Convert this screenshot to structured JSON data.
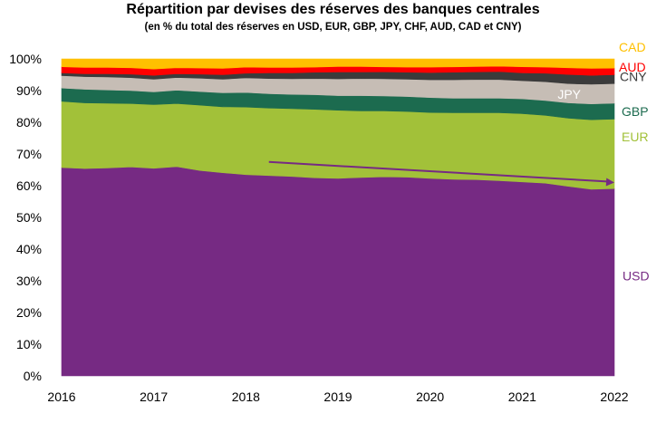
{
  "chart_data": {
    "type": "area",
    "stacked": true,
    "title": "Répartition par devises des réserves des banques centrales",
    "subtitle": "(en % du total des réserves en USD, EUR, GBP, JPY, CHF, AUD, CAD et CNY)",
    "x": [
      2016.0,
      2016.25,
      2016.5,
      2016.75,
      2017.0,
      2017.25,
      2017.5,
      2017.75,
      2018.0,
      2018.25,
      2018.5,
      2018.75,
      2019.0,
      2019.25,
      2019.5,
      2019.75,
      2020.0,
      2020.25,
      2020.5,
      2020.75,
      2021.0,
      2021.25,
      2021.5,
      2021.75,
      2022.0
    ],
    "xlim": [
      2016,
      2022
    ],
    "xticks": [
      "2016",
      "2017",
      "2018",
      "2019",
      "2020",
      "2021",
      "2022"
    ],
    "ylim": [
      0,
      100
    ],
    "yticks": [
      "0%",
      "10%",
      "20%",
      "30%",
      "40%",
      "50%",
      "60%",
      "70%",
      "80%",
      "90%",
      "100%"
    ],
    "series": [
      {
        "name": "USD",
        "color": "#762a83",
        "label_color": "#762a83",
        "values": [
          65.7,
          65.4,
          65.6,
          65.9,
          65.5,
          66.0,
          64.8,
          64.1,
          63.5,
          63.2,
          62.9,
          62.5,
          62.3,
          62.6,
          62.8,
          62.7,
          62.3,
          62.0,
          61.9,
          61.6,
          61.2,
          60.8,
          59.8,
          58.9,
          59.1
        ]
      },
      {
        "name": "EUR",
        "color": "#a2c139",
        "label_color": "#a2c139",
        "values": [
          20.9,
          20.7,
          20.4,
          20.0,
          20.1,
          19.9,
          20.6,
          20.8,
          21.3,
          21.3,
          21.4,
          21.6,
          21.5,
          21.0,
          20.8,
          20.7,
          20.8,
          21.0,
          21.1,
          21.4,
          21.5,
          21.4,
          21.5,
          21.9,
          21.9
        ]
      },
      {
        "name": "GBP",
        "color": "#1c6b4f",
        "label_color": "#1c6b4f",
        "values": [
          4.2,
          4.3,
          4.2,
          4.1,
          4.0,
          4.2,
          4.3,
          4.4,
          4.6,
          4.5,
          4.5,
          4.6,
          4.6,
          4.8,
          4.7,
          4.7,
          4.7,
          4.6,
          4.6,
          4.6,
          4.7,
          4.7,
          4.8,
          5.0,
          5.0
        ]
      },
      {
        "name": "JPY",
        "color": "#c6bdb5",
        "label_color": "#ffffff",
        "values": [
          3.9,
          4.0,
          4.1,
          4.1,
          4.0,
          4.0,
          4.2,
          4.3,
          4.6,
          4.8,
          4.9,
          5.1,
          5.3,
          5.4,
          5.4,
          5.5,
          5.6,
          5.8,
          5.9,
          5.9,
          5.7,
          5.9,
          6.1,
          6.2,
          6.2
        ]
      },
      {
        "name": "CNY",
        "color": "#3b3b3b",
        "label_color": "#3b3b3b",
        "values": [
          0.9,
          0.9,
          1.0,
          1.1,
          1.2,
          1.2,
          1.3,
          1.4,
          1.5,
          1.8,
          1.9,
          2.0,
          2.2,
          2.1,
          2.2,
          2.2,
          2.3,
          2.4,
          2.4,
          2.5,
          2.5,
          2.7,
          2.9,
          2.8,
          2.8
        ]
      },
      {
        "name": "AUD",
        "color": "#ff0000",
        "label_color": "#ff0000",
        "values": [
          1.9,
          2.0,
          2.0,
          2.0,
          2.0,
          1.9,
          1.9,
          2.0,
          1.9,
          1.7,
          1.7,
          1.6,
          1.7,
          1.7,
          1.6,
          1.6,
          1.7,
          1.7,
          1.7,
          1.7,
          1.9,
          1.9,
          2.1,
          2.2,
          2.1
        ]
      },
      {
        "name": "CAD",
        "color": "#ffc000",
        "label_color": "#ffc000",
        "values": [
          2.5,
          2.7,
          2.7,
          2.8,
          3.2,
          2.8,
          2.9,
          3.0,
          2.6,
          2.7,
          2.7,
          2.6,
          2.4,
          2.4,
          2.5,
          2.6,
          2.6,
          2.5,
          2.4,
          2.3,
          2.5,
          2.6,
          2.8,
          3.0,
          2.9
        ]
      }
    ],
    "annotation": {
      "type": "trend-arrow",
      "from": [
        2018.25,
        67.5
      ],
      "to": [
        2022.0,
        61.0
      ],
      "color": "#762a83"
    },
    "grid": false
  }
}
